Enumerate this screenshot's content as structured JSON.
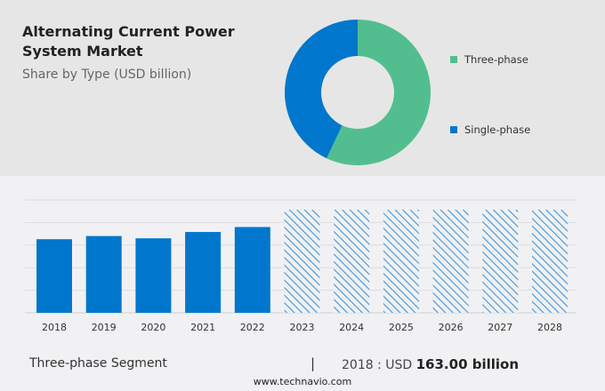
{
  "title": "Alternating Current Power System Market",
  "subtitle": "Share by Type (USD billion)",
  "colors": {
    "three_phase": "#52be8f",
    "single_phase": "#0077cc",
    "forecast_hatch": "#3d95e0"
  },
  "chart_data": [
    {
      "type": "pie",
      "style": "donut",
      "legend_position": "right",
      "series": [
        {
          "name": "Three-phase",
          "value": 57
        },
        {
          "name": "Single-phase",
          "value": 43
        }
      ]
    },
    {
      "type": "bar",
      "categories": [
        "2018",
        "2019",
        "2020",
        "2021",
        "2022",
        "2023",
        "2024",
        "2025",
        "2026",
        "2027",
        "2028"
      ],
      "values": [
        163,
        170,
        165,
        179,
        190,
        null,
        null,
        null,
        null,
        null,
        null
      ],
      "forecast_categories": [
        "2023",
        "2024",
        "2025",
        "2026",
        "2027",
        "2028"
      ],
      "forecast_style": "hatched",
      "ylim": [
        0,
        250
      ],
      "grid": true,
      "y_tick_labels_shown": false
    }
  ],
  "footer": {
    "segment": "Three-phase Segment",
    "separator": "|",
    "value_prefix": "2018 : USD",
    "value": "163.00 billion",
    "website": "www.technavio.com"
  }
}
